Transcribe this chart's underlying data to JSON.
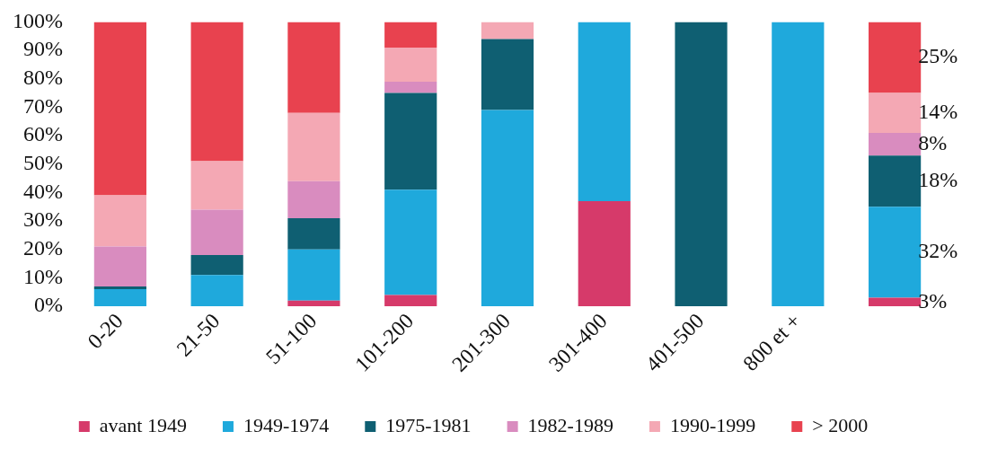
{
  "chart_data": {
    "type": "bar",
    "stacked": true,
    "categories": [
      "0-20",
      "21-50",
      "51-100",
      "101-200",
      "201-300",
      "301-400",
      "401-500",
      "800 et +",
      null
    ],
    "series": [
      {
        "name": "avant 1949",
        "color": "#d63a6a",
        "values": [
          0,
          0,
          2,
          4,
          0,
          37,
          0,
          0,
          3
        ],
        "value_labels": [
          null,
          null,
          null,
          null,
          null,
          null,
          null,
          null,
          "3%"
        ]
      },
      {
        "name": "1949-1974",
        "color": "#1fa9dc",
        "values": [
          6,
          11,
          18,
          37,
          69,
          63,
          0,
          100,
          32
        ],
        "value_labels": [
          null,
          null,
          null,
          null,
          null,
          null,
          null,
          null,
          "32%"
        ]
      },
      {
        "name": "1975-1981",
        "color": "#0f5f72",
        "values": [
          1,
          7,
          11,
          34,
          25,
          0,
          100,
          0,
          18
        ],
        "value_labels": [
          null,
          null,
          null,
          null,
          null,
          null,
          null,
          null,
          "18%"
        ]
      },
      {
        "name": "1982-1989",
        "color": "#d98cbf",
        "values": [
          14,
          16,
          13,
          4,
          0,
          0,
          0,
          0,
          8
        ],
        "value_labels": [
          null,
          null,
          null,
          null,
          null,
          null,
          null,
          null,
          "8%"
        ]
      },
      {
        "name": "1990-1999",
        "color": "#f4a8b4",
        "values": [
          18,
          17,
          24,
          12,
          6,
          0,
          0,
          0,
          14
        ],
        "value_labels": [
          null,
          null,
          null,
          null,
          null,
          null,
          null,
          null,
          "14%"
        ]
      },
      {
        "name": "> 2000",
        "color": "#e8424f",
        "values": [
          61,
          49,
          32,
          9,
          0,
          0,
          0,
          0,
          25
        ],
        "value_labels": [
          null,
          null,
          null,
          null,
          null,
          null,
          null,
          null,
          "25%"
        ]
      }
    ],
    "ylim": [
      0,
      100
    ],
    "yticks": [
      {
        "value": 0,
        "label": "0%"
      },
      {
        "value": 10,
        "label": "10%"
      },
      {
        "value": 20,
        "label": "20%"
      },
      {
        "value": 30,
        "label": "30%"
      },
      {
        "value": 40,
        "label": "40%"
      },
      {
        "value": 50,
        "label": "50%"
      },
      {
        "value": 60,
        "label": "60%"
      },
      {
        "value": 70,
        "label": "70%"
      },
      {
        "value": 80,
        "label": "80%"
      },
      {
        "value": 90,
        "label": "90%"
      },
      {
        "value": 100,
        "label": "100%"
      }
    ],
    "grid": false,
    "legend": "bottom",
    "marker": "square"
  }
}
